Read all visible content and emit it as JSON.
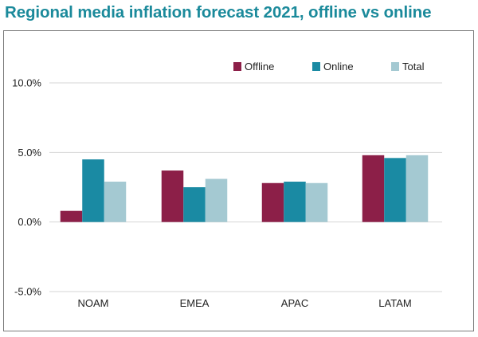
{
  "chart_data": {
    "type": "bar",
    "title": "Regional media inflation forecast 2021, offline vs online",
    "categories": [
      "NOAM",
      "EMEA",
      "APAC",
      "LATAM"
    ],
    "series": [
      {
        "name": "Offline",
        "color": "#8c1f48",
        "values": [
          0.8,
          3.7,
          2.8,
          4.8
        ]
      },
      {
        "name": "Online",
        "color": "#1a8aa3",
        "values": [
          4.5,
          2.5,
          2.9,
          4.6
        ]
      },
      {
        "name": "Total",
        "color": "#a4c9d2",
        "values": [
          2.9,
          3.1,
          2.8,
          4.8
        ]
      }
    ],
    "ylim": [
      -5.0,
      10.0
    ],
    "yticks": [
      "10.0%",
      "5.0%",
      "0.0%",
      "-5.0%"
    ],
    "ytick_values": [
      10,
      5,
      0,
      -5
    ],
    "xlabel": "",
    "ylabel": "",
    "grid": true,
    "legend_position": "top-right"
  }
}
